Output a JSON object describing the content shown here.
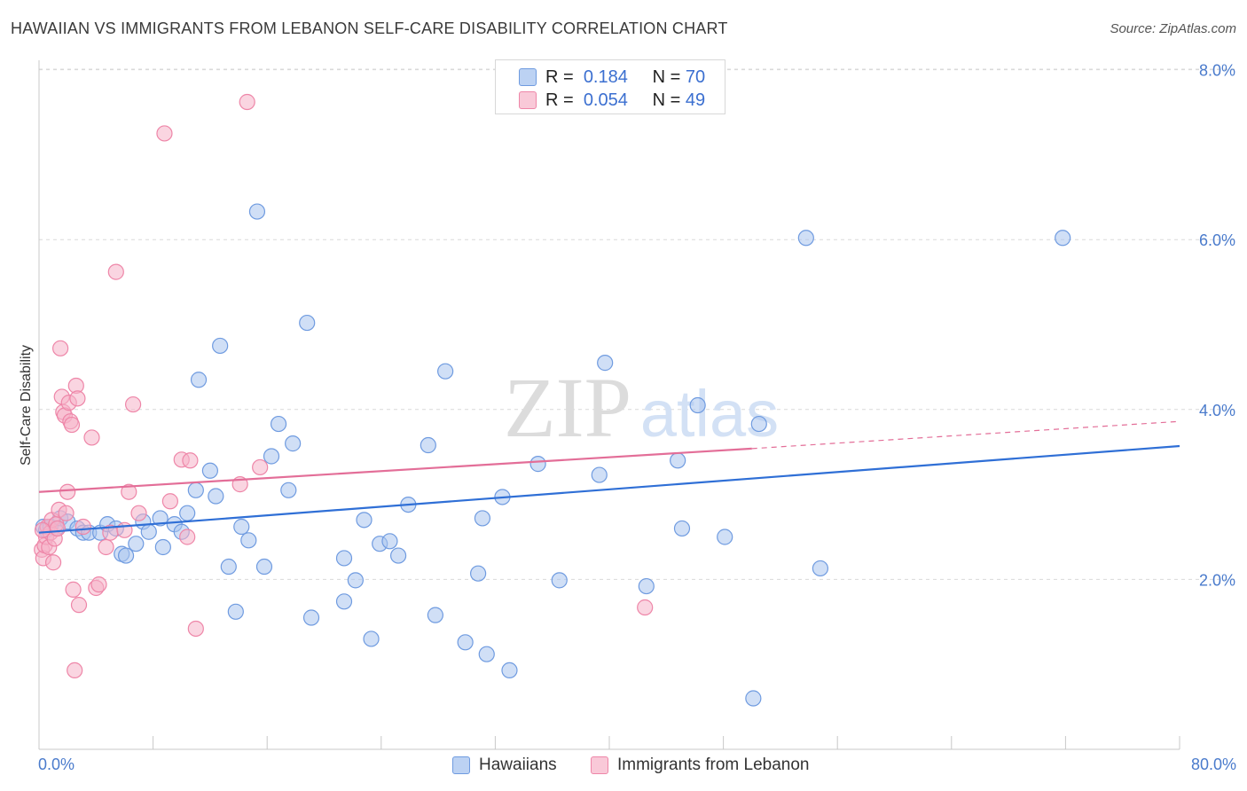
{
  "header": {
    "title": "HAWAIIAN VS IMMIGRANTS FROM LEBANON SELF-CARE DISABILITY CORRELATION CHART",
    "source": "Source: ZipAtlas.com"
  },
  "watermark": {
    "zip": "ZIP",
    "atlas": "atlas"
  },
  "legend": {
    "rows": [
      {
        "r_label": "R =",
        "r_value": "0.184",
        "n_label": "N =",
        "n_value": "70"
      },
      {
        "r_label": "R =",
        "r_value": "0.054",
        "n_label": "N =",
        "n_value": "49"
      }
    ]
  },
  "bottom_legend": {
    "series1": "Hawaiians",
    "series2": "Immigrants from Lebanon"
  },
  "colors": {
    "blue_fill": "#a9c4ee",
    "blue_stroke": "#6f9be0",
    "blue_line": "#2f6fd6",
    "pink_fill": "#f6b3c8",
    "pink_stroke": "#ee86a8",
    "pink_line": "#e36e98",
    "axis_text": "#4a7bcc",
    "grid": "#d9d9d9"
  },
  "chart_data": {
    "type": "scatter",
    "title": "HAWAIIAN VS IMMIGRANTS FROM LEBANON SELF-CARE DISABILITY CORRELATION CHART",
    "xlabel": "",
    "ylabel": "Self-Care Disability",
    "xlim": [
      0,
      80
    ],
    "ylim": [
      0,
      8.2
    ],
    "x_tick_labels": [
      "0.0%",
      "80.0%"
    ],
    "y_ticks": [
      2.0,
      4.0,
      6.0,
      8.0
    ],
    "y_tick_labels": [
      "2.0%",
      "4.0%",
      "6.0%",
      "8.0%"
    ],
    "grid": true,
    "series": [
      {
        "name": "Hawaiians",
        "R": 0.184,
        "N": 70,
        "trend": {
          "x0": 0,
          "y0": 2.55,
          "x1": 80,
          "y1": 3.57
        },
        "points": [
          [
            0.3,
            2.62
          ],
          [
            0.5,
            2.58
          ],
          [
            0.8,
            2.62
          ],
          [
            1.2,
            2.6
          ],
          [
            1.5,
            2.72
          ],
          [
            2.0,
            2.68
          ],
          [
            2.7,
            2.6
          ],
          [
            3.1,
            2.55
          ],
          [
            3.5,
            2.55
          ],
          [
            4.3,
            2.55
          ],
          [
            4.8,
            2.65
          ],
          [
            5.4,
            2.6
          ],
          [
            5.8,
            2.3
          ],
          [
            6.1,
            2.28
          ],
          [
            6.8,
            2.42
          ],
          [
            7.3,
            2.68
          ],
          [
            7.7,
            2.56
          ],
          [
            8.5,
            2.72
          ],
          [
            8.7,
            2.38
          ],
          [
            9.5,
            2.65
          ],
          [
            10.0,
            2.56
          ],
          [
            10.4,
            2.78
          ],
          [
            11.0,
            3.05
          ],
          [
            11.2,
            4.35
          ],
          [
            12.0,
            3.28
          ],
          [
            12.4,
            2.98
          ],
          [
            12.7,
            4.75
          ],
          [
            13.3,
            2.15
          ],
          [
            13.8,
            1.62
          ],
          [
            14.2,
            2.62
          ],
          [
            14.7,
            2.46
          ],
          [
            15.3,
            6.33
          ],
          [
            15.8,
            2.15
          ],
          [
            16.3,
            3.45
          ],
          [
            16.8,
            3.83
          ],
          [
            17.5,
            3.05
          ],
          [
            17.8,
            3.6
          ],
          [
            18.8,
            5.02
          ],
          [
            19.1,
            1.55
          ],
          [
            21.4,
            2.25
          ],
          [
            21.4,
            1.74
          ],
          [
            22.2,
            1.99
          ],
          [
            22.8,
            2.7
          ],
          [
            23.3,
            1.3
          ],
          [
            23.9,
            2.42
          ],
          [
            24.6,
            2.45
          ],
          [
            25.2,
            2.28
          ],
          [
            25.9,
            2.88
          ],
          [
            27.3,
            3.58
          ],
          [
            27.8,
            1.58
          ],
          [
            28.5,
            4.45
          ],
          [
            29.9,
            1.26
          ],
          [
            30.8,
            2.07
          ],
          [
            31.1,
            2.72
          ],
          [
            31.4,
            1.12
          ],
          [
            32.5,
            2.97
          ],
          [
            33.0,
            0.93
          ],
          [
            35.0,
            3.36
          ],
          [
            36.5,
            1.99
          ],
          [
            39.3,
            3.23
          ],
          [
            39.7,
            4.55
          ],
          [
            42.6,
            1.92
          ],
          [
            44.8,
            3.4
          ],
          [
            45.1,
            2.6
          ],
          [
            46.2,
            4.05
          ],
          [
            48.1,
            2.5
          ],
          [
            50.1,
            0.6
          ],
          [
            50.5,
            3.83
          ],
          [
            53.8,
            6.02
          ],
          [
            54.8,
            2.13
          ],
          [
            71.8,
            6.02
          ]
        ]
      },
      {
        "name": "Immigrants from Lebanon",
        "R": 0.054,
        "N": 49,
        "trend": {
          "x0": 0,
          "y0": 3.03,
          "x1": 50,
          "y1": 3.54,
          "dashed_to_x": 80,
          "dashed_to_y": 3.86
        },
        "points": [
          [
            0.2,
            2.35
          ],
          [
            0.3,
            2.25
          ],
          [
            0.4,
            2.4
          ],
          [
            0.5,
            2.5
          ],
          [
            0.6,
            2.62
          ],
          [
            0.7,
            2.38
          ],
          [
            0.8,
            2.55
          ],
          [
            0.9,
            2.7
          ],
          [
            1.0,
            2.2
          ],
          [
            1.1,
            2.48
          ],
          [
            1.2,
            2.65
          ],
          [
            1.3,
            2.6
          ],
          [
            1.4,
            2.82
          ],
          [
            1.5,
            4.72
          ],
          [
            1.6,
            4.15
          ],
          [
            1.7,
            3.97
          ],
          [
            1.8,
            3.93
          ],
          [
            1.9,
            2.78
          ],
          [
            2.0,
            3.03
          ],
          [
            2.1,
            4.08
          ],
          [
            2.2,
            3.86
          ],
          [
            2.3,
            3.82
          ],
          [
            2.4,
            1.88
          ],
          [
            2.5,
            0.93
          ],
          [
            2.6,
            4.28
          ],
          [
            2.7,
            4.13
          ],
          [
            2.8,
            1.7
          ],
          [
            3.1,
            2.62
          ],
          [
            3.7,
            3.67
          ],
          [
            4.0,
            1.9
          ],
          [
            4.2,
            1.94
          ],
          [
            4.7,
            2.38
          ],
          [
            5.0,
            2.55
          ],
          [
            5.4,
            5.62
          ],
          [
            6.0,
            2.58
          ],
          [
            6.3,
            3.03
          ],
          [
            6.6,
            4.06
          ],
          [
            7.0,
            2.78
          ],
          [
            8.8,
            7.25
          ],
          [
            9.2,
            2.92
          ],
          [
            10.0,
            3.41
          ],
          [
            10.4,
            2.5
          ],
          [
            10.6,
            3.4
          ],
          [
            11.0,
            1.42
          ],
          [
            14.1,
            3.12
          ],
          [
            14.6,
            7.62
          ],
          [
            15.5,
            3.32
          ],
          [
            42.5,
            1.67
          ],
          [
            0.25,
            2.58
          ]
        ]
      }
    ]
  }
}
